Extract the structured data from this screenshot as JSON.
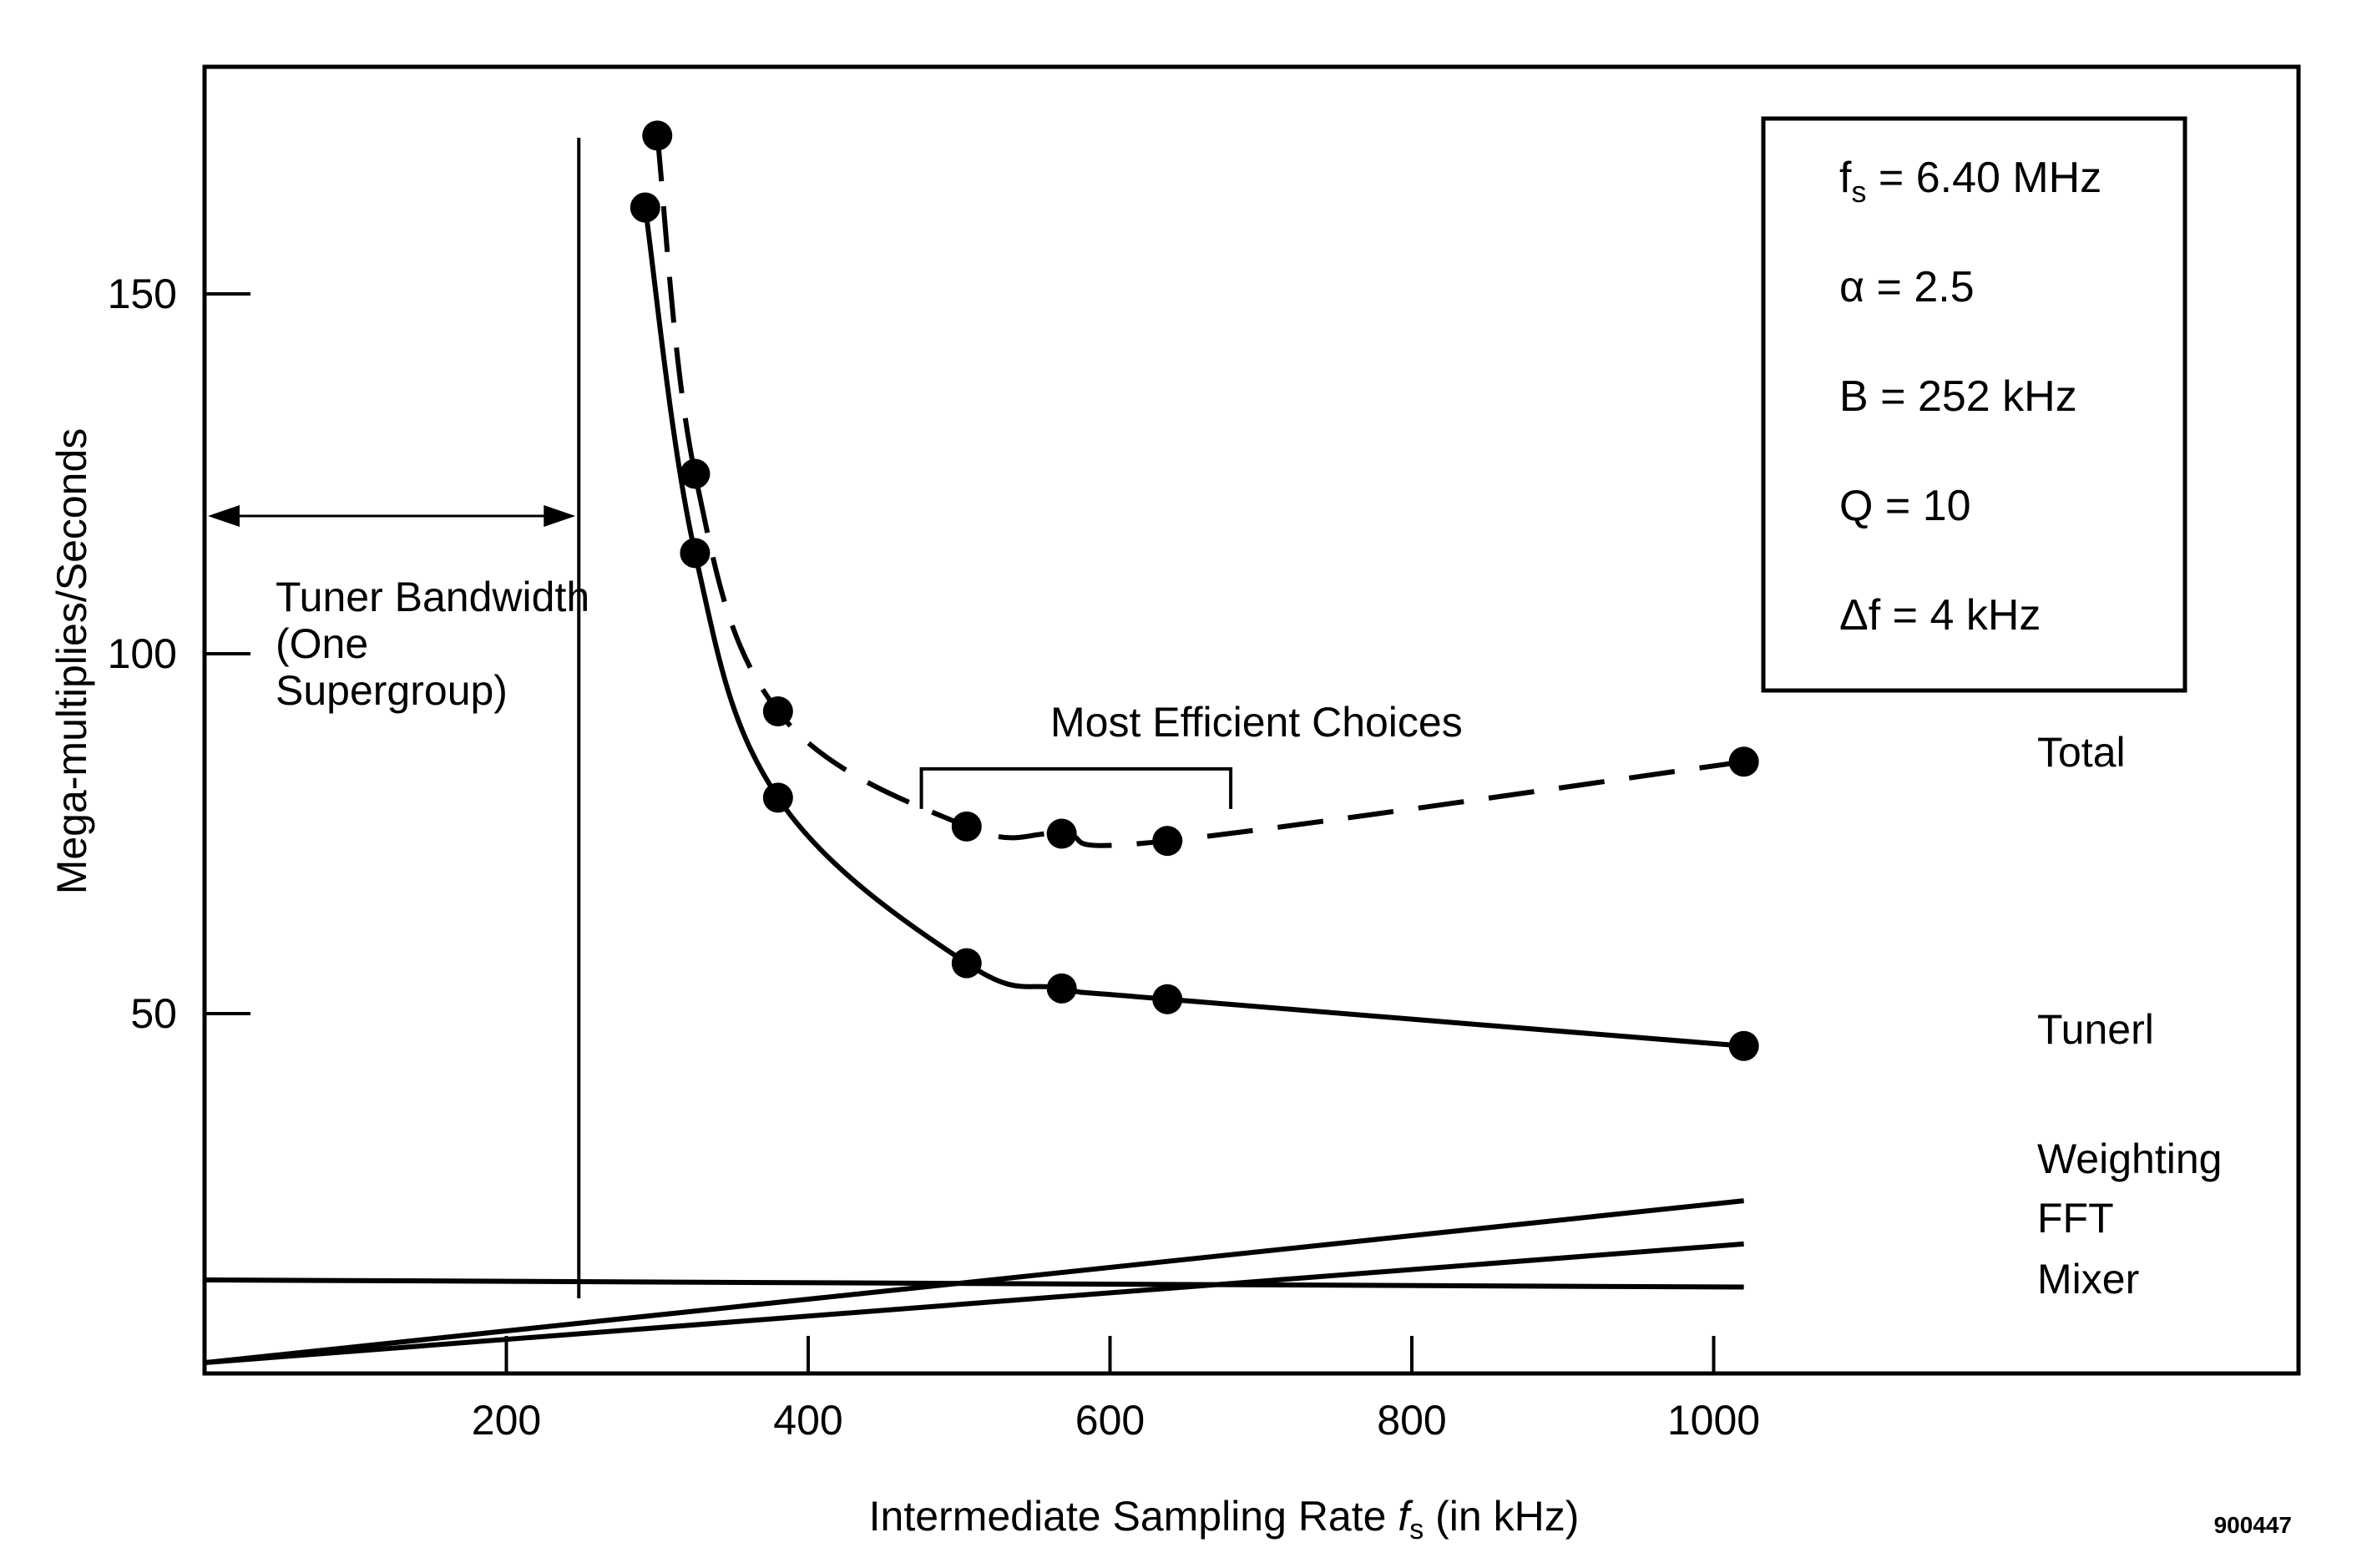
{
  "chart_data": {
    "type": "line",
    "xlabel_main": "Intermediate Sampling Rate ",
    "xlabel_var": "f",
    "xlabel_sub": "s",
    "xlabel_unit": " (in kHz)",
    "ylabel": "Mega-multiplies/Seconds",
    "xlim": [
      0,
      1180
    ],
    "ylim": [
      0,
      184
    ],
    "x_ticks": [
      200,
      400,
      600,
      800,
      1000
    ],
    "x_tick_labels": [
      "200",
      "400",
      "600",
      "800",
      "1000"
    ],
    "y_ticks": [
      50,
      100,
      150
    ],
    "y_tick_labels": [
      "50",
      "100",
      "150"
    ],
    "grid": false,
    "series": [
      {
        "name": "Total",
        "style": "dashed",
        "marker": "dot",
        "x": [
          300,
          325,
          380,
          505,
          568,
          638,
          1020
        ],
        "y": [
          172,
          125,
          92,
          76,
          75,
          74,
          85
        ]
      },
      {
        "name": "Tunerl",
        "style": "solid",
        "marker": "dot",
        "x": [
          292,
          325,
          380,
          505,
          568,
          638,
          1020
        ],
        "y": [
          162,
          114,
          80,
          57,
          53.5,
          52,
          45.5
        ]
      },
      {
        "name": "Weighting",
        "style": "solid",
        "marker": "none",
        "x": [
          0,
          1020
        ],
        "y": [
          1.5,
          24
        ]
      },
      {
        "name": "FFT",
        "style": "solid",
        "marker": "none",
        "x": [
          0,
          1020
        ],
        "y": [
          1.5,
          18
        ]
      },
      {
        "name": "Mixer",
        "style": "solid",
        "marker": "none",
        "x": [
          0,
          1020
        ],
        "y": [
          13,
          12
        ]
      }
    ],
    "annotations": {
      "tuner_bandwidth": {
        "x": 248,
        "lines": [
          "Tuner Bandwidth",
          "(One",
          "Supergroup)"
        ]
      },
      "most_efficient": {
        "text": "Most Efficient Choices",
        "x_range": [
          475,
          680
        ],
        "y": 84
      }
    },
    "parameters": [
      {
        "symbol": "f",
        "subscript": "s",
        "rest": " = 6.40 MHz"
      },
      {
        "symbol": "α",
        "subscript": "",
        "rest": " = 2.5"
      },
      {
        "symbol": "B",
        "subscript": "",
        "rest": " = 252 kHz"
      },
      {
        "symbol": "Q",
        "subscript": "",
        "rest": " = 10"
      },
      {
        "symbol": "Δf",
        "subscript": "",
        "rest": " = 4 kHz"
      }
    ],
    "figure_id": "900447"
  },
  "colors": {
    "ink": "#000000",
    "background": "#ffffff"
  }
}
